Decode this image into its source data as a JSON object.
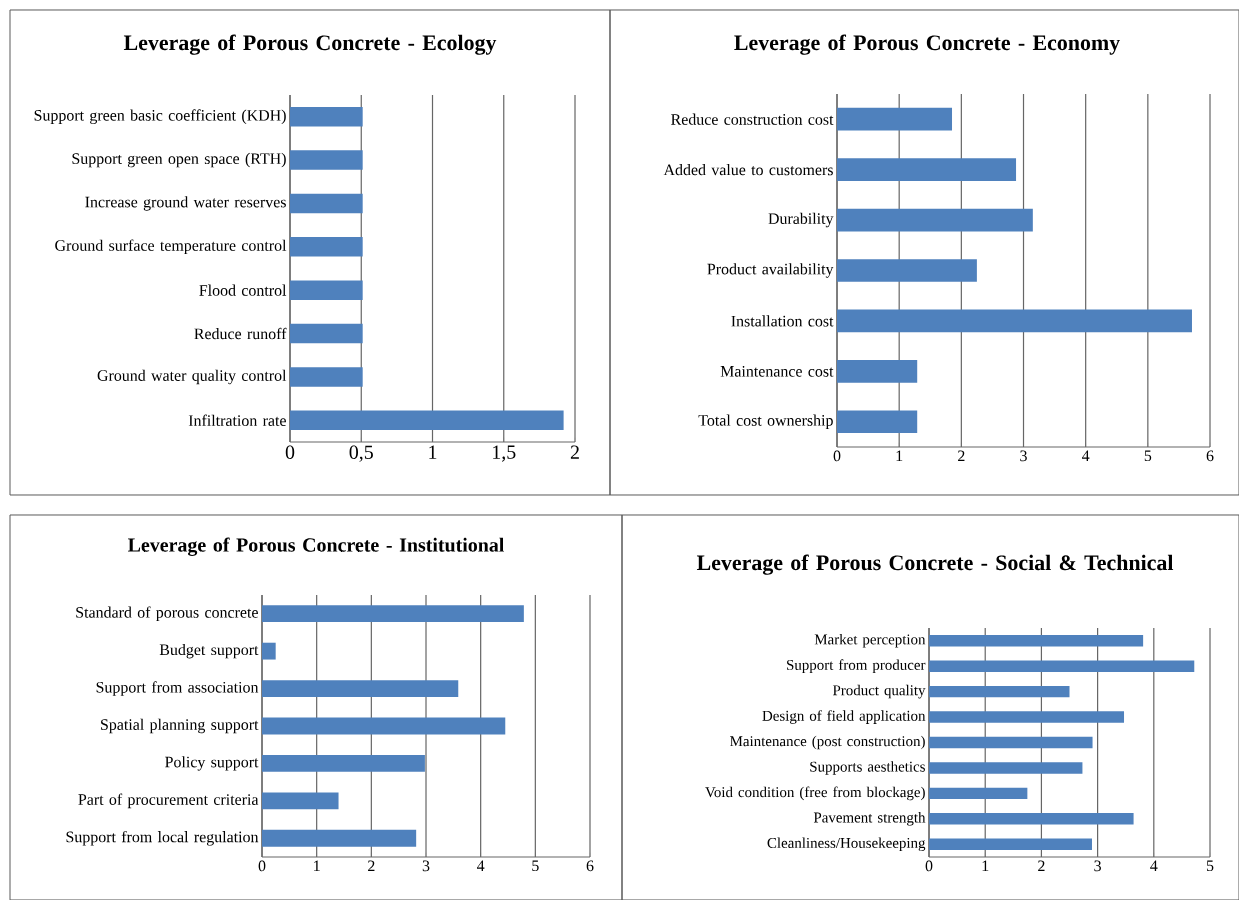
{
  "chart_data": [
    {
      "type": "bar",
      "orientation": "horizontal",
      "title": "Leverage of Porous Concrete - Ecology",
      "categories": [
        "Support green basic coefficient (KDH)",
        "Support green open space (RTH)",
        "Increase ground water reserves",
        "Ground surface temperature control",
        "Flood control",
        "Reduce runoff",
        "Ground water quality control",
        "Infiltration rate"
      ],
      "values": [
        0.51,
        0.51,
        0.51,
        0.51,
        0.51,
        0.51,
        0.51,
        1.92
      ],
      "color": "#4f81bd",
      "xlim": [
        0,
        2
      ],
      "xticks": [
        0,
        {
          "value": 0.5,
          "label": "0,5"
        },
        1,
        {
          "value": 1.5,
          "label": "1,5"
        },
        2
      ],
      "grid": "x"
    },
    {
      "type": "bar",
      "orientation": "horizontal",
      "title": "Leverage of Porous Concrete - Economy",
      "categories": [
        "Reduce construction cost",
        "Added value to customers",
        "Durability",
        "Product availability",
        "Installation cost",
        "Maintenance cost",
        "Total cost ownership"
      ],
      "values": [
        1.85,
        2.88,
        3.15,
        2.25,
        5.71,
        1.29,
        1.29
      ],
      "color": "#4f81bd",
      "xlim": [
        0,
        6
      ],
      "xticks": [
        0,
        1,
        2,
        3,
        4,
        5,
        6
      ],
      "grid": "x"
    },
    {
      "type": "bar",
      "orientation": "horizontal",
      "title": "Leverage of Porous Concrete - Institutional",
      "categories": [
        "Standard of porous concrete",
        "Budget support",
        "Support from association",
        "Spatial planning support",
        "Policy support",
        "Part of procurement criteria",
        "Support from local regulation"
      ],
      "values": [
        4.79,
        0.25,
        3.59,
        4.45,
        2.98,
        1.4,
        2.82
      ],
      "color": "#4f81bd",
      "xlim": [
        0,
        6
      ],
      "xticks": [
        0,
        1,
        2,
        3,
        4,
        5,
        6
      ],
      "grid": "x"
    },
    {
      "type": "bar",
      "orientation": "horizontal",
      "title": "Leverage of Porous Concrete - Social & Technical",
      "categories": [
        "Market perception",
        "Support from producer",
        "Product quality",
        "Design of field application",
        "Maintenance (post construction)",
        "Supports aesthetics",
        "Void condition (free from blockage)",
        "Pavement strength",
        "Cleanliness/Housekeeping"
      ],
      "values": [
        3.81,
        4.72,
        2.5,
        3.47,
        2.91,
        2.73,
        1.75,
        3.64,
        2.9
      ],
      "color": "#4f81bd",
      "xlim": [
        0,
        5
      ],
      "xticks": [
        0,
        1,
        2,
        3,
        4,
        5
      ],
      "grid": "x"
    }
  ]
}
